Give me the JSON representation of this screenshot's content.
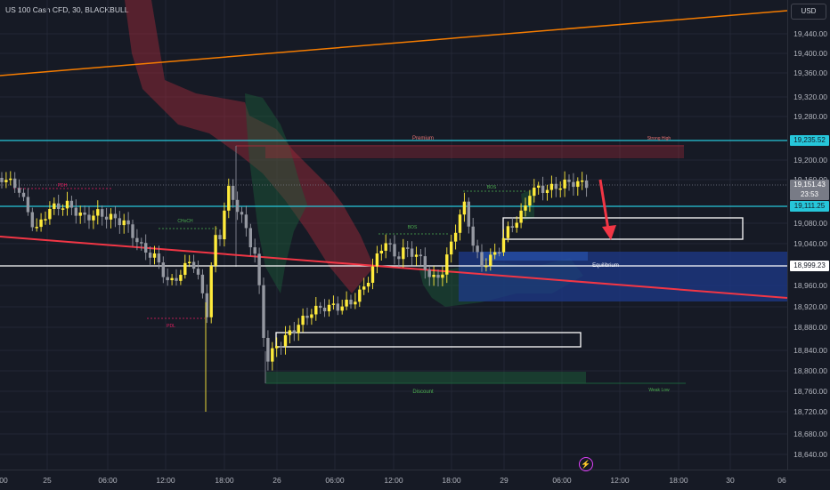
{
  "header": {
    "symbol_title": "US 100 Cash CFD, 30, BLACKBULL",
    "currency_button": "USD"
  },
  "price_axis": {
    "ticks": [
      "19,440.00",
      "19,400.00",
      "19,360.00",
      "19,320.00",
      "19,280.00",
      "19,200.00",
      "19,160.00",
      "19,080.00",
      "19,040.00",
      "18,960.00",
      "18,920.00",
      "18,880.00",
      "18,840.00",
      "18,800.00",
      "18,760.00",
      "18,720.00",
      "18,680.00",
      "18,640.00"
    ],
    "labels": {
      "premium_level": "19,235.52",
      "current_price": "19,151.43",
      "countdown": "23:53",
      "upper_line": "19,111.25",
      "equilibrium_level": "18,999.23"
    }
  },
  "time_axis": {
    "ticks": [
      "00",
      "25",
      "06:00",
      "12:00",
      "18:00",
      "26",
      "06:00",
      "12:00",
      "18:00",
      "29",
      "06:00",
      "12:00",
      "18:00",
      "30",
      "06"
    ]
  },
  "annotations": {
    "premium": "Premium",
    "equilibrium": "Equilibrium",
    "discount": "Discount",
    "strong_high": "Strong High",
    "weak_low": "Weak Low",
    "pdh": "PDH",
    "pdl": "PDL",
    "choch": "CHoCH",
    "bos": "BOS",
    "bos2": "BOS"
  },
  "colors": {
    "background": "#161a25",
    "bull_candle": "#ffeb3b",
    "bear_candle": "#9598a1",
    "cyan_line": "#26c6da",
    "orange_trend": "#f57c00",
    "red_trend": "#f23645",
    "equilibrium_zone": "#1e3a8a",
    "arrow": "#f23645"
  }
}
